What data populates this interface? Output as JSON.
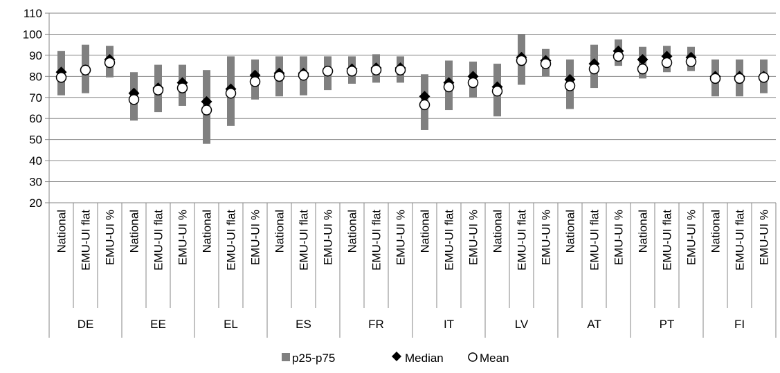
{
  "chart_data": {
    "type": "range-dot",
    "ylim": [
      20,
      110
    ],
    "y_ticks": [
      20,
      30,
      40,
      50,
      60,
      70,
      80,
      90,
      100,
      110
    ],
    "grid": "horizontal",
    "legend_position": "bottom",
    "legend": [
      {
        "key": "p25_p75",
        "label": "p25-p75",
        "color": "#808080",
        "marker": "bar"
      },
      {
        "key": "median",
        "label": "Median",
        "color": "#000000",
        "marker": "diamond"
      },
      {
        "key": "mean",
        "label": "Mean",
        "color": "#ffffff",
        "marker": "circle"
      }
    ],
    "groups": [
      {
        "country": "DE",
        "items": [
          {
            "label": "National",
            "p25": 71,
            "p75": 92,
            "median": 82,
            "mean": 79.5
          },
          {
            "label": "EMU-UI flat",
            "p25": 72,
            "p75": 95,
            "median": 83,
            "mean": 83
          },
          {
            "label": "EMU-UI %",
            "p25": 79.5,
            "p75": 94.5,
            "median": 88,
            "mean": 86.5
          }
        ]
      },
      {
        "country": "EE",
        "items": [
          {
            "label": "National",
            "p25": 59,
            "p75": 82,
            "median": 72,
            "mean": 69
          },
          {
            "label": "EMU-UI flat",
            "p25": 63,
            "p75": 85.5,
            "median": 74.5,
            "mean": 73.5
          },
          {
            "label": "EMU-UI %",
            "p25": 66,
            "p75": 85.5,
            "median": 77,
            "mean": 74.5
          }
        ]
      },
      {
        "country": "EL",
        "items": [
          {
            "label": "National",
            "p25": 48,
            "p75": 83,
            "median": 68,
            "mean": 64
          },
          {
            "label": "EMU-UI flat",
            "p25": 56.5,
            "p75": 89.5,
            "median": 74,
            "mean": 72
          },
          {
            "label": "EMU-UI %",
            "p25": 69,
            "p75": 88,
            "median": 80.5,
            "mean": 77.5
          }
        ]
      },
      {
        "country": "ES",
        "items": [
          {
            "label": "National",
            "p25": 70.5,
            "p75": 89.5,
            "median": 81.5,
            "mean": 80
          },
          {
            "label": "EMU-UI flat",
            "p25": 71,
            "p75": 89.5,
            "median": 81.5,
            "mean": 80.5
          },
          {
            "label": "EMU-UI %",
            "p25": 73.5,
            "p75": 89.5,
            "median": 82.5,
            "mean": 82.5
          }
        ]
      },
      {
        "country": "FR",
        "items": [
          {
            "label": "National",
            "p25": 76.5,
            "p75": 89.5,
            "median": 83.5,
            "mean": 82.5
          },
          {
            "label": "EMU-UI flat",
            "p25": 77,
            "p75": 90.5,
            "median": 84,
            "mean": 83
          },
          {
            "label": "EMU-UI %",
            "p25": 77,
            "p75": 89.5,
            "median": 84,
            "mean": 83
          }
        ]
      },
      {
        "country": "IT",
        "items": [
          {
            "label": "National",
            "p25": 54.5,
            "p75": 81,
            "median": 70.5,
            "mean": 66.5
          },
          {
            "label": "EMU-UI flat",
            "p25": 64,
            "p75": 87.5,
            "median": 77,
            "mean": 75
          },
          {
            "label": "EMU-UI %",
            "p25": 70,
            "p75": 87,
            "median": 80,
            "mean": 77
          }
        ]
      },
      {
        "country": "LV",
        "items": [
          {
            "label": "National",
            "p25": 61,
            "p75": 86,
            "median": 75,
            "mean": 73
          },
          {
            "label": "EMU-UI flat",
            "p25": 76,
            "p75": 100,
            "median": 89,
            "mean": 87.5
          },
          {
            "label": "EMU-UI %",
            "p25": 80,
            "p75": 93,
            "median": 87.5,
            "mean": 86
          }
        ]
      },
      {
        "country": "AT",
        "items": [
          {
            "label": "National",
            "p25": 64.5,
            "p75": 88,
            "median": 78.5,
            "mean": 75.5
          },
          {
            "label": "EMU-UI flat",
            "p25": 74.5,
            "p75": 95,
            "median": 86,
            "mean": 83.5
          },
          {
            "label": "EMU-UI %",
            "p25": 85,
            "p75": 97.5,
            "median": 92,
            "mean": 89.5
          }
        ]
      },
      {
        "country": "PT",
        "items": [
          {
            "label": "National",
            "p25": 79,
            "p75": 94,
            "median": 88,
            "mean": 83.5
          },
          {
            "label": "EMU-UI flat",
            "p25": 82,
            "p75": 94.5,
            "median": 89.5,
            "mean": 86.5
          },
          {
            "label": "EMU-UI %",
            "p25": 82.5,
            "p75": 94,
            "median": 89,
            "mean": 87
          }
        ]
      },
      {
        "country": "FI",
        "items": [
          {
            "label": "National",
            "p25": 70.5,
            "p75": 88,
            "median": 80,
            "mean": 79
          },
          {
            "label": "EMU-UI flat",
            "p25": 70.5,
            "p75": 88,
            "median": 80,
            "mean": 79
          },
          {
            "label": "EMU-UI %",
            "p25": 72,
            "p75": 88,
            "median": 80,
            "mean": 79.5
          }
        ]
      }
    ]
  }
}
